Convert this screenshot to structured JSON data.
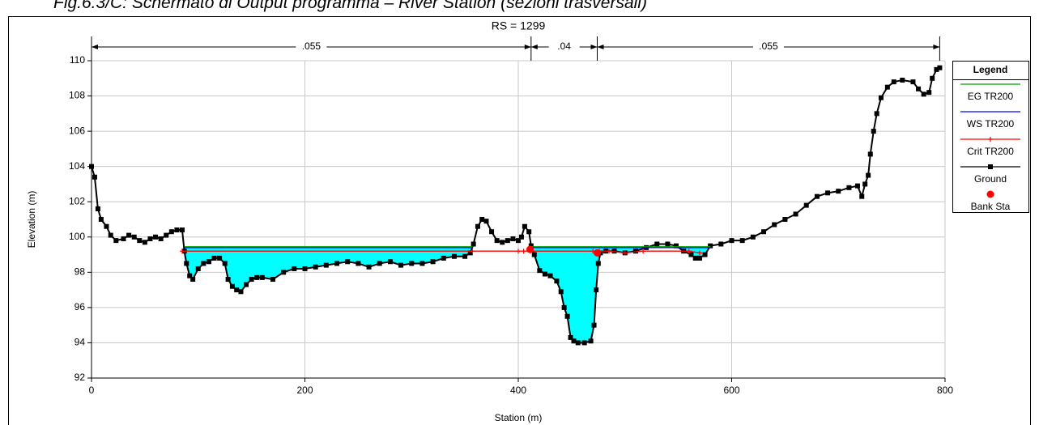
{
  "caption": "Fig.6.3/C: Schermato di Output programma – River Station (sezioni trasversali)",
  "chart_data": {
    "type": "line",
    "title": "RS = 1299",
    "x_label": "Station (m)",
    "y_label": "Elevation (m)",
    "xlim": [
      0,
      800
    ],
    "xticks": [
      0,
      200,
      400,
      600,
      800
    ],
    "ylim": [
      92,
      110
    ],
    "yticks": [
      92,
      94,
      96,
      98,
      100,
      102,
      104,
      106,
      108,
      110
    ],
    "grid": true,
    "legend_title": "Legend",
    "legend": "right",
    "n_values": [
      {
        "value": 0.055,
        "label": ".055"
      },
      {
        "value": 0.04,
        "label": ".04"
      },
      {
        "value": 0.055,
        "label": ".055"
      }
    ],
    "n_stations": [
      0,
      412,
      474,
      795
    ],
    "water_fill": "#00ffff",
    "water_series": 1,
    "ground_series": 3,
    "series": [
      {
        "name": "EG TR200",
        "color": "#00a000",
        "marker": "none",
        "x": [
          87,
          357,
          384,
          412,
          580
        ],
        "values": [
          99.45,
          99.45,
          null,
          99.45,
          99.45
        ]
      },
      {
        "name": "WS TR200",
        "color": "#0000ff",
        "marker": "none",
        "x": [
          87,
          357,
          384,
          412,
          580
        ],
        "values": [
          99.4,
          99.4,
          null,
          99.4,
          99.4
        ]
      },
      {
        "name": "Crit TR200",
        "color": "#ff0000",
        "marker": "plus",
        "x": [
          85,
          357,
          400,
          405,
          411,
          470,
          476,
          485,
          500,
          517,
          560,
          570
        ],
        "values": [
          99.2,
          99.2,
          99.2,
          99.2,
          99.2,
          99.2,
          99.2,
          99.2,
          99.1,
          99.2,
          99.2,
          99.1
        ]
      },
      {
        "name": "Ground",
        "color": "#000000",
        "marker": "square",
        "x": [
          0,
          3,
          6,
          9,
          14,
          18,
          23,
          30,
          35,
          40,
          45,
          50,
          55,
          60,
          65,
          70,
          75,
          80,
          85,
          87,
          89,
          92,
          95,
          100,
          105,
          110,
          115,
          120,
          125,
          128,
          132,
          136,
          140,
          145,
          150,
          155,
          160,
          170,
          180,
          190,
          200,
          210,
          220,
          230,
          240,
          250,
          260,
          270,
          280,
          290,
          300,
          310,
          320,
          330,
          340,
          350,
          355,
          358,
          362,
          366,
          370,
          375,
          380,
          385,
          390,
          395,
          400,
          403,
          406,
          410,
          412,
          415,
          420,
          425,
          430,
          436,
          440,
          443,
          446,
          449,
          452,
          456,
          462,
          468,
          471,
          473,
          475,
          477,
          482,
          490,
          500,
          510,
          520,
          530,
          540,
          548,
          555,
          562,
          566,
          570,
          575,
          580,
          590,
          600,
          610,
          620,
          630,
          640,
          650,
          660,
          670,
          680,
          690,
          700,
          710,
          718,
          722,
          725,
          728,
          730,
          733,
          736,
          740,
          746,
          752,
          760,
          770,
          775,
          780,
          785,
          788,
          792,
          795
        ],
        "values": [
          104.0,
          103.4,
          101.6,
          101.0,
          100.6,
          100.1,
          99.8,
          99.9,
          100.1,
          100.0,
          99.8,
          99.7,
          99.9,
          100.0,
          99.9,
          100.1,
          100.3,
          100.4,
          100.4,
          99.2,
          98.5,
          97.8,
          97.6,
          98.2,
          98.5,
          98.6,
          98.8,
          98.8,
          98.5,
          97.6,
          97.2,
          97.0,
          96.9,
          97.3,
          97.6,
          97.7,
          97.7,
          97.6,
          98.0,
          98.2,
          98.2,
          98.3,
          98.4,
          98.5,
          98.6,
          98.5,
          98.3,
          98.5,
          98.6,
          98.4,
          98.5,
          98.5,
          98.6,
          98.8,
          98.9,
          98.9,
          99.1,
          99.6,
          100.6,
          101.0,
          100.9,
          100.3,
          99.8,
          99.7,
          99.8,
          99.9,
          99.8,
          100.0,
          100.6,
          100.3,
          99.5,
          99.0,
          98.1,
          97.9,
          97.8,
          97.5,
          96.9,
          96.0,
          95.5,
          94.3,
          94.1,
          94.0,
          94.0,
          94.1,
          95.0,
          97.0,
          98.5,
          99.1,
          99.2,
          99.2,
          99.1,
          99.2,
          99.4,
          99.6,
          99.6,
          99.5,
          99.2,
          99.0,
          98.8,
          98.8,
          99.0,
          99.5,
          99.6,
          99.8,
          99.8,
          100.0,
          100.3,
          100.7,
          101.0,
          101.3,
          101.8,
          102.3,
          102.5,
          102.6,
          102.8,
          102.9,
          102.3,
          103.0,
          103.5,
          104.7,
          106.0,
          107.0,
          107.9,
          108.5,
          108.8,
          108.9,
          108.8,
          108.4,
          108.1,
          108.2,
          109.0,
          109.5,
          109.6
        ]
      },
      {
        "name": "Bank Sta",
        "color": "#ff0000",
        "marker": "circle",
        "line": false,
        "x": [
          411,
          474
        ],
        "values": [
          99.3,
          99.1
        ]
      }
    ]
  }
}
